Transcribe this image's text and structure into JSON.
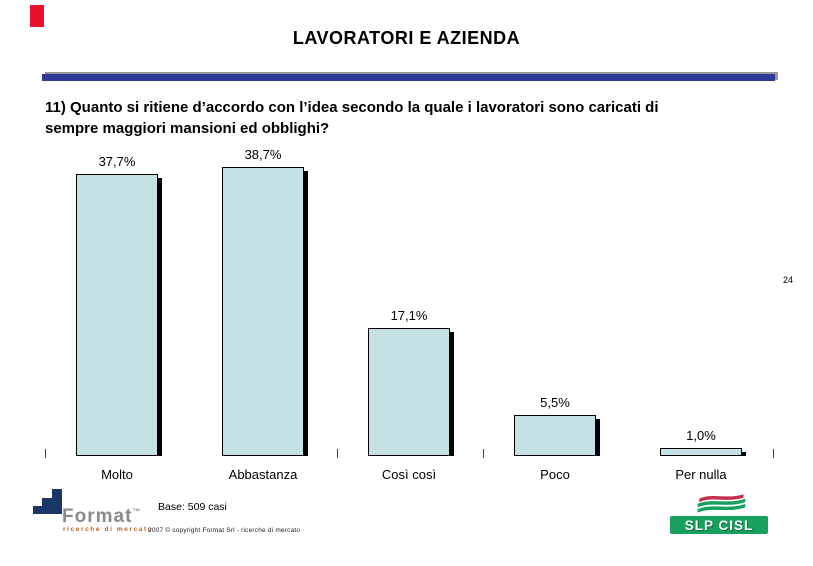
{
  "slide": {
    "title": "LAVORATORI E AZIENDA",
    "page_number": "24",
    "question_lines": [
      "11) Quanto si ritiene d’accordo con l’idea secondo la quale i lavoratori sono caricati di",
      "sempre maggiori mansioni ed obblighi?"
    ]
  },
  "chart_data": {
    "type": "bar",
    "title": "",
    "xlabel": "",
    "ylabel": "",
    "categories": [
      "Molto",
      "Abbastanza",
      "Così così",
      "Poco",
      "Per nulla"
    ],
    "values": [
      37.7,
      38.7,
      17.1,
      5.5,
      1.0
    ],
    "value_labels": [
      "37,7%",
      "38,7%",
      "17,1%",
      "5,5%",
      "1,0%"
    ],
    "ylim": [
      0,
      40
    ],
    "grid": false,
    "legend": false,
    "bar_color": "#C5E1E6",
    "bar_border_color": "#000000",
    "bar_shadow_color": "#000000"
  },
  "footer": {
    "base_note": "Base: 509 casi",
    "copyright": "2007 © copyright Format Srl -  ricerche di mercato",
    "format_logo": {
      "name": "Format",
      "tm": "™",
      "tagline": "ricerche di mercato"
    },
    "slp_cisl_logo": {
      "label": "SLP CISL"
    }
  },
  "colors": {
    "red_marker": "#E8112D",
    "divider_blue": "#2F3799",
    "divider_gray": "#9A9A9A",
    "format_navy": "#1B3768",
    "format_gray": "#8A8A8A",
    "format_orange": "#C05E1E",
    "slp_green": "#18A15E",
    "slp_flag_red": "#C22F4F"
  }
}
